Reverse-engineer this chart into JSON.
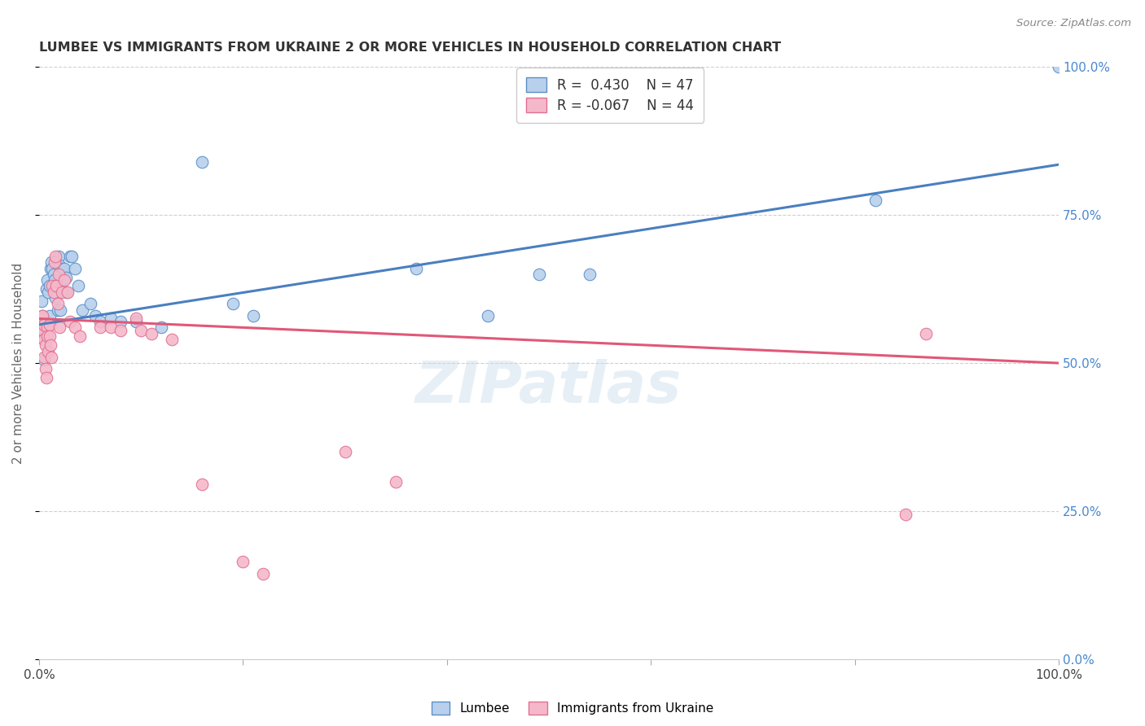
{
  "title": "LUMBEE VS IMMIGRANTS FROM UKRAINE 2 OR MORE VEHICLES IN HOUSEHOLD CORRELATION CHART",
  "source": "Source: ZipAtlas.com",
  "ylabel": "2 or more Vehicles in Household",
  "ytick_labels": [
    "0.0%",
    "25.0%",
    "50.0%",
    "75.0%",
    "100.0%"
  ],
  "ytick_values": [
    0.0,
    0.25,
    0.5,
    0.75,
    1.0
  ],
  "legend_blue_label": "Lumbee",
  "legend_pink_label": "Immigrants from Ukraine",
  "R_blue": 0.43,
  "N_blue": 47,
  "R_pink": -0.067,
  "N_pink": 44,
  "blue_face": "#b8d0ec",
  "blue_edge": "#5a8fc8",
  "pink_face": "#f5b8ca",
  "pink_edge": "#e07090",
  "blue_line": "#4a7fc0",
  "pink_line": "#e05878",
  "watermark": "ZIPatlas",
  "blue_x": [
    0.002,
    0.003,
    0.004,
    0.005,
    0.005,
    0.006,
    0.007,
    0.008,
    0.009,
    0.01,
    0.01,
    0.011,
    0.012,
    0.013,
    0.014,
    0.015,
    0.016,
    0.018,
    0.019,
    0.02,
    0.021,
    0.022,
    0.023,
    0.025,
    0.026,
    0.027,
    0.03,
    0.032,
    0.035,
    0.038,
    0.042,
    0.05,
    0.055,
    0.06,
    0.07,
    0.08,
    0.095,
    0.12,
    0.16,
    0.19,
    0.21,
    0.37,
    0.44,
    0.49,
    0.54,
    0.82,
    1.0
  ],
  "blue_y": [
    0.605,
    0.58,
    0.555,
    0.54,
    0.505,
    0.57,
    0.625,
    0.64,
    0.62,
    0.63,
    0.58,
    0.66,
    0.67,
    0.66,
    0.65,
    0.64,
    0.61,
    0.59,
    0.68,
    0.665,
    0.59,
    0.64,
    0.66,
    0.66,
    0.645,
    0.62,
    0.68,
    0.68,
    0.66,
    0.63,
    0.59,
    0.6,
    0.58,
    0.57,
    0.575,
    0.57,
    0.57,
    0.56,
    0.84,
    0.6,
    0.58,
    0.66,
    0.58,
    0.65,
    0.65,
    0.775,
    1.0
  ],
  "pink_x": [
    0.002,
    0.003,
    0.004,
    0.005,
    0.005,
    0.005,
    0.006,
    0.006,
    0.007,
    0.008,
    0.008,
    0.009,
    0.01,
    0.01,
    0.011,
    0.012,
    0.013,
    0.014,
    0.015,
    0.016,
    0.017,
    0.018,
    0.019,
    0.02,
    0.022,
    0.025,
    0.028,
    0.03,
    0.035,
    0.04,
    0.06,
    0.07,
    0.08,
    0.095,
    0.1,
    0.11,
    0.13,
    0.16,
    0.2,
    0.22,
    0.3,
    0.35,
    0.85,
    0.87
  ],
  "pink_y": [
    0.575,
    0.58,
    0.555,
    0.565,
    0.54,
    0.51,
    0.49,
    0.53,
    0.475,
    0.56,
    0.545,
    0.52,
    0.565,
    0.545,
    0.53,
    0.51,
    0.63,
    0.62,
    0.67,
    0.68,
    0.63,
    0.6,
    0.65,
    0.56,
    0.62,
    0.64,
    0.62,
    0.57,
    0.56,
    0.545,
    0.56,
    0.56,
    0.555,
    0.575,
    0.555,
    0.55,
    0.54,
    0.295,
    0.165,
    0.145,
    0.35,
    0.3,
    0.245,
    0.55
  ]
}
